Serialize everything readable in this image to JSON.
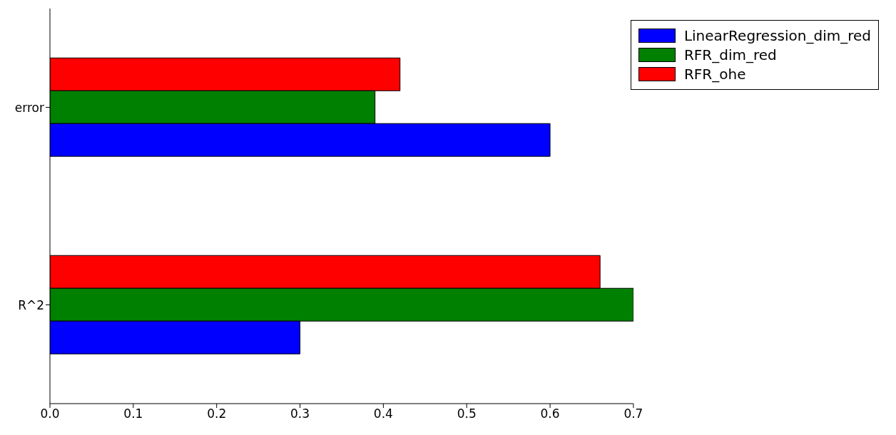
{
  "chart_data": {
    "type": "bar",
    "orientation": "horizontal",
    "categories": [
      "error",
      "R^2"
    ],
    "series": [
      {
        "name": "LinearRegression_dim_red",
        "color": "#0000ff",
        "values": [
          0.6,
          0.3
        ]
      },
      {
        "name": "RFR_dim_red",
        "color": "#008000",
        "values": [
          0.39,
          0.7
        ]
      },
      {
        "name": "RFR_ohe",
        "color": "#ff0000",
        "values": [
          0.42,
          0.66
        ]
      }
    ],
    "xlim": [
      0,
      0.7
    ],
    "xticks": [
      {
        "value": 0,
        "label": "0.0"
      },
      {
        "value": 0.1,
        "label": "0.1"
      },
      {
        "value": 0.2,
        "label": "0.2"
      },
      {
        "value": 0.3,
        "label": "0.3"
      },
      {
        "value": 0.4,
        "label": "0.4"
      },
      {
        "value": 0.5,
        "label": "0.5"
      },
      {
        "value": 0.6,
        "label": "0.6"
      },
      {
        "value": 0.7,
        "label": "0.7"
      }
    ],
    "legend": "top right",
    "grid": false
  }
}
